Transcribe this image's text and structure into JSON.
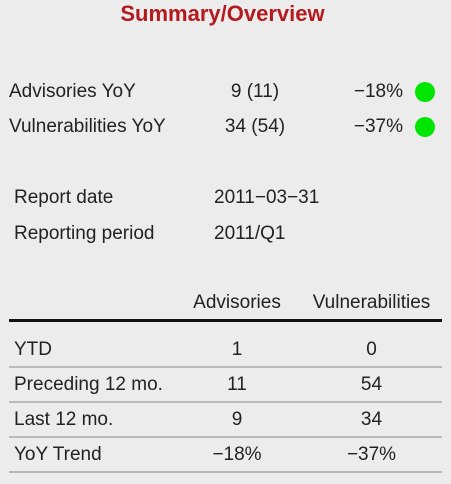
{
  "title": "Summary/Overview",
  "yoy": [
    {
      "label": "Advisories YoY",
      "count": "9 (11)",
      "change": "−18%",
      "status_color": "#00e600"
    },
    {
      "label": "Vulnerabilities YoY",
      "count": "34 (54)",
      "change": "−37%",
      "status_color": "#00e600"
    }
  ],
  "report": {
    "date_label": "Report date",
    "date_value": "2011−03−31",
    "period_label": "Reporting period",
    "period_value": "2011/Q1"
  },
  "table": {
    "headers": [
      "",
      "Advisories",
      "Vulnerabilities"
    ],
    "rows": [
      [
        "YTD",
        "1",
        "0"
      ],
      [
        "Preceding 12 mo.",
        "11",
        "54"
      ],
      [
        "Last 12 mo.",
        "9",
        "34"
      ],
      [
        "YoY Trend",
        "−18%",
        "−37%"
      ]
    ]
  }
}
